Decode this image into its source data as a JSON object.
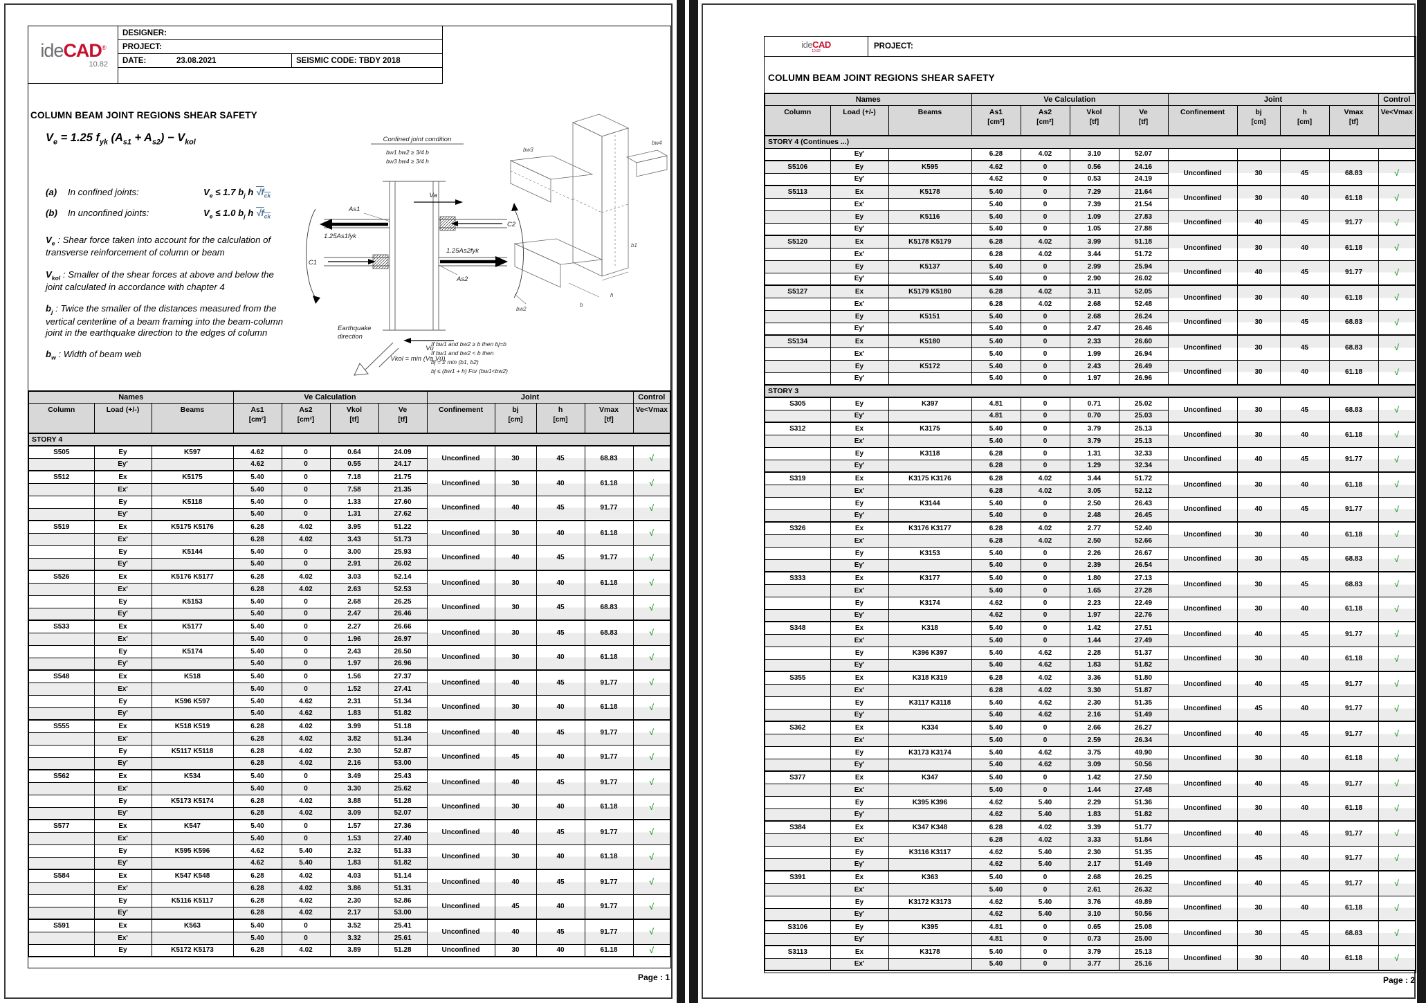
{
  "colors": {
    "accent_red": "#c8102e",
    "logo_gray": "#6d6e71",
    "check_green": "#2e9e2e",
    "header_gray": "#d8d8d8",
    "row_alt": "#ececec"
  },
  "page1": {
    "logo": {
      "ide": "ide",
      "cad": "CAD",
      "reg": "®",
      "version": "10.82"
    },
    "header": {
      "designer": "DESIGNER:",
      "project": "PROJECT:",
      "date": "DATE:",
      "date_value": "23.08.2021",
      "seismic": "SEISMIC CODE: TBDY 2018"
    },
    "title": "COLUMN BEAM JOINT REGIONS SHEAR SAFETY",
    "formula_main": [
      [
        "V",
        "e"
      ],
      [
        " = 1.25 f",
        "yk"
      ],
      [
        " (A",
        "s1"
      ],
      [
        " + A",
        "s2"
      ],
      [
        ") − V",
        "kol"
      ]
    ],
    "cond_a": {
      "label": "(a)",
      "text": "In confined joints:",
      "formula": [
        [
          "V",
          "e"
        ],
        [
          " ≤ 1.7 b",
          "j"
        ],
        [
          " h ",
          ""
        ],
        [
          "√f",
          "ck",
          1
        ]
      ]
    },
    "cond_b": {
      "label": "(b)",
      "text": "In unconfined joints:",
      "formula": [
        [
          "V",
          "e"
        ],
        [
          " ≤ 1.0 b",
          "j"
        ],
        [
          " h ",
          ""
        ],
        [
          "√f",
          "ck",
          1
        ]
      ]
    },
    "defs": [
      {
        "term": [
          [
            "V",
            "e"
          ]
        ],
        "text": " : Shear force taken into account for the calculation of transverse reinforcement of column or beam"
      },
      {
        "term": [
          [
            "V",
            "kol"
          ]
        ],
        "text": " : Smaller of the shear forces at above and below the joint calculated in accordance with chapter 4"
      },
      {
        "term": [
          [
            "b",
            "j"
          ]
        ],
        "text": " : Twice the smaller of the distances measured from the vertical centerline of a beam framing into the beam-column joint in the earthquake direction to the edges of column"
      },
      {
        "term": [
          [
            "b",
            "w"
          ]
        ],
        "text": " : Width of beam web"
      }
    ],
    "page_label": "Page : 1"
  },
  "page2": {
    "logo": {
      "ide": "ide",
      "cad": "CAD",
      "version": "10.82"
    },
    "header": {
      "project": "PROJECT:"
    },
    "title": "COLUMN BEAM JOINT REGIONS SHEAR SAFETY",
    "page_label": "Page : 2"
  },
  "diagram": {
    "cond_title": "Confined joint condition",
    "cond1": "bw1   bw2 ≥ 3/4 b",
    "cond2": "bw3   bw4 ≥ 3/4 h",
    "va": "Va",
    "vu": "Vü",
    "as1": "As1",
    "as2": "As2",
    "c1": "C1",
    "c2": "C2",
    "f1": "1.25As1fyk",
    "f2": "1.25As2fyk",
    "vkol": "Vkol = min (Va,Vü)",
    "eq1": "Earthquake",
    "eq2": "direction",
    "r1": "If bw1 and bw2 ≥ b then bj=b",
    "r2": "If bw1 and bw2 < b then",
    "r3": "bj = 2 min (b1, b2)",
    "r4": "bj ≤ (bw1 + h)  For (bw1<bw2)",
    "bw2": "bw2",
    "bw3": "bw3",
    "bw4": "bw4",
    "b1": "b1",
    "b": "b",
    "h": "h"
  },
  "table_header": {
    "groups": [
      {
        "label": "Names",
        "span": 3
      },
      {
        "label": "Ve Calculation",
        "span": 4
      },
      {
        "label": "Joint",
        "span": 4
      },
      {
        "label": "Control",
        "span": 1
      }
    ],
    "columns": [
      {
        "label": "Column",
        "unit": ""
      },
      {
        "label": "Load (+/-)",
        "unit": ""
      },
      {
        "label": "Beams",
        "unit": ""
      },
      {
        "label": "As1",
        "unit": "[cm²]"
      },
      {
        "label": "As2",
        "unit": "[cm²]"
      },
      {
        "label": "Vkol",
        "unit": "[tf]"
      },
      {
        "label": "Ve",
        "unit": "[tf]"
      },
      {
        "label": "Confinement",
        "unit": ""
      },
      {
        "label": "bj",
        "unit": "[cm]"
      },
      {
        "label": "h",
        "unit": "[cm]"
      },
      {
        "label": "Vmax",
        "unit": "[tf]"
      },
      {
        "label": "Ve<Vmax",
        "unit": ""
      }
    ],
    "check_glyph": "√"
  },
  "rows1": [
    {
      "band": "STORY 4"
    },
    [
      "S505",
      "Ey",
      "K597",
      "4.62",
      "0",
      "0.64",
      "24.09",
      "Unconfined",
      "30",
      "45",
      "68.83",
      1
    ],
    [
      "",
      "Ey'",
      "",
      "4.62",
      "0",
      "0.55",
      "24.17"
    ],
    [
      "S512",
      "Ex",
      "K5175",
      "5.40",
      "0",
      "7.18",
      "21.75",
      "Unconfined",
      "30",
      "40",
      "61.18",
      1
    ],
    [
      "",
      "Ex'",
      "",
      "5.40",
      "0",
      "7.58",
      "21.35"
    ],
    [
      "",
      "Ey",
      "K5118",
      "5.40",
      "0",
      "1.33",
      "27.60",
      "Unconfined",
      "40",
      "45",
      "91.77",
      1
    ],
    [
      "",
      "Ey'",
      "",
      "5.40",
      "0",
      "1.31",
      "27.62"
    ],
    [
      "S519",
      "Ex",
      "K5175 K5176",
      "6.28",
      "4.02",
      "3.95",
      "51.22",
      "Unconfined",
      "30",
      "40",
      "61.18",
      1
    ],
    [
      "",
      "Ex'",
      "",
      "6.28",
      "4.02",
      "3.43",
      "51.73"
    ],
    [
      "",
      "Ey",
      "K5144",
      "5.40",
      "0",
      "3.00",
      "25.93",
      "Unconfined",
      "40",
      "45",
      "91.77",
      1
    ],
    [
      "",
      "Ey'",
      "",
      "5.40",
      "0",
      "2.91",
      "26.02"
    ],
    [
      "S526",
      "Ex",
      "K5176 K5177",
      "6.28",
      "4.02",
      "3.03",
      "52.14",
      "Unconfined",
      "30",
      "40",
      "61.18",
      1
    ],
    [
      "",
      "Ex'",
      "",
      "6.28",
      "4.02",
      "2.63",
      "52.53"
    ],
    [
      "",
      "Ey",
      "K5153",
      "5.40",
      "0",
      "2.68",
      "26.25",
      "Unconfined",
      "30",
      "45",
      "68.83",
      1
    ],
    [
      "",
      "Ey'",
      "",
      "5.40",
      "0",
      "2.47",
      "26.46"
    ],
    [
      "S533",
      "Ex",
      "K5177",
      "5.40",
      "0",
      "2.27",
      "26.66",
      "Unconfined",
      "30",
      "45",
      "68.83",
      1
    ],
    [
      "",
      "Ex'",
      "",
      "5.40",
      "0",
      "1.96",
      "26.97"
    ],
    [
      "",
      "Ey",
      "K5174",
      "5.40",
      "0",
      "2.43",
      "26.50",
      "Unconfined",
      "30",
      "40",
      "61.18",
      1
    ],
    [
      "",
      "Ey'",
      "",
      "5.40",
      "0",
      "1.97",
      "26.96"
    ],
    [
      "S548",
      "Ex",
      "K518",
      "5.40",
      "0",
      "1.56",
      "27.37",
      "Unconfined",
      "40",
      "45",
      "91.77",
      1
    ],
    [
      "",
      "Ex'",
      "",
      "5.40",
      "0",
      "1.52",
      "27.41"
    ],
    [
      "",
      "Ey",
      "K596 K597",
      "5.40",
      "4.62",
      "2.31",
      "51.34",
      "Unconfined",
      "30",
      "40",
      "61.18",
      1
    ],
    [
      "",
      "Ey'",
      "",
      "5.40",
      "4.62",
      "1.83",
      "51.82"
    ],
    [
      "S555",
      "Ex",
      "K518 K519",
      "6.28",
      "4.02",
      "3.99",
      "51.18",
      "Unconfined",
      "40",
      "45",
      "91.77",
      1
    ],
    [
      "",
      "Ex'",
      "",
      "6.28",
      "4.02",
      "3.82",
      "51.34"
    ],
    [
      "",
      "Ey",
      "K5117 K5118",
      "6.28",
      "4.02",
      "2.30",
      "52.87",
      "Unconfined",
      "45",
      "40",
      "91.77",
      1
    ],
    [
      "",
      "Ey'",
      "",
      "6.28",
      "4.02",
      "2.16",
      "53.00"
    ],
    [
      "S562",
      "Ex",
      "K534",
      "5.40",
      "0",
      "3.49",
      "25.43",
      "Unconfined",
      "40",
      "45",
      "91.77",
      1
    ],
    [
      "",
      "Ex'",
      "",
      "5.40",
      "0",
      "3.30",
      "25.62"
    ],
    [
      "",
      "Ey",
      "K5173 K5174",
      "6.28",
      "4.02",
      "3.88",
      "51.28",
      "Unconfined",
      "30",
      "40",
      "61.18",
      1
    ],
    [
      "",
      "Ey'",
      "",
      "6.28",
      "4.02",
      "3.09",
      "52.07"
    ],
    [
      "S577",
      "Ex",
      "K547",
      "5.40",
      "0",
      "1.57",
      "27.36",
      "Unconfined",
      "40",
      "45",
      "91.77",
      1
    ],
    [
      "",
      "Ex'",
      "",
      "5.40",
      "0",
      "1.53",
      "27.40"
    ],
    [
      "",
      "Ey",
      "K595 K596",
      "4.62",
      "5.40",
      "2.32",
      "51.33",
      "Unconfined",
      "30",
      "40",
      "61.18",
      1
    ],
    [
      "",
      "Ey'",
      "",
      "4.62",
      "5.40",
      "1.83",
      "51.82"
    ],
    [
      "S584",
      "Ex",
      "K547 K548",
      "6.28",
      "4.02",
      "4.03",
      "51.14",
      "Unconfined",
      "40",
      "45",
      "91.77",
      1
    ],
    [
      "",
      "Ex'",
      "",
      "6.28",
      "4.02",
      "3.86",
      "51.31"
    ],
    [
      "",
      "Ey",
      "K5116 K5117",
      "6.28",
      "4.02",
      "2.30",
      "52.86",
      "Unconfined",
      "45",
      "40",
      "91.77",
      1
    ],
    [
      "",
      "Ey'",
      "",
      "6.28",
      "4.02",
      "2.17",
      "53.00"
    ],
    [
      "S591",
      "Ex",
      "K563",
      "5.40",
      "0",
      "3.52",
      "25.41",
      "Unconfined",
      "40",
      "45",
      "91.77",
      1
    ],
    [
      "",
      "Ex'",
      "",
      "5.40",
      "0",
      "3.32",
      "25.61"
    ],
    [
      "",
      "Ey",
      "K5172 K5173",
      "6.28",
      "4.02",
      "3.89",
      "51.28",
      "Unconfined",
      "30",
      "40",
      "61.18",
      1
    ]
  ],
  "rows2": [
    {
      "band": "STORY 4   (Continues ...)"
    },
    [
      "",
      "Ey'",
      "",
      "6.28",
      "4.02",
      "3.10",
      "52.07"
    ],
    [
      "S5106",
      "Ey",
      "K595",
      "4.62",
      "0",
      "0.56",
      "24.16",
      "Unconfined",
      "30",
      "45",
      "68.83",
      1
    ],
    [
      "",
      "Ey'",
      "",
      "4.62",
      "0",
      "0.53",
      "24.19"
    ],
    [
      "S5113",
      "Ex",
      "K5178",
      "5.40",
      "0",
      "7.29",
      "21.64",
      "Unconfined",
      "30",
      "40",
      "61.18",
      1
    ],
    [
      "",
      "Ex'",
      "",
      "5.40",
      "0",
      "7.39",
      "21.54"
    ],
    [
      "",
      "Ey",
      "K5116",
      "5.40",
      "0",
      "1.09",
      "27.83",
      "Unconfined",
      "40",
      "45",
      "91.77",
      1
    ],
    [
      "",
      "Ey'",
      "",
      "5.40",
      "0",
      "1.05",
      "27.88"
    ],
    [
      "S5120",
      "Ex",
      "K5178 K5179",
      "6.28",
      "4.02",
      "3.99",
      "51.18",
      "Unconfined",
      "30",
      "40",
      "61.18",
      1
    ],
    [
      "",
      "Ex'",
      "",
      "6.28",
      "4.02",
      "3.44",
      "51.72"
    ],
    [
      "",
      "Ey",
      "K5137",
      "5.40",
      "0",
      "2.99",
      "25.94",
      "Unconfined",
      "40",
      "45",
      "91.77",
      1
    ],
    [
      "",
      "Ey'",
      "",
      "5.40",
      "0",
      "2.90",
      "26.02"
    ],
    [
      "S5127",
      "Ex",
      "K5179 K5180",
      "6.28",
      "4.02",
      "3.11",
      "52.05",
      "Unconfined",
      "30",
      "40",
      "61.18",
      1
    ],
    [
      "",
      "Ex'",
      "",
      "6.28",
      "4.02",
      "2.68",
      "52.48"
    ],
    [
      "",
      "Ey",
      "K5151",
      "5.40",
      "0",
      "2.68",
      "26.24",
      "Unconfined",
      "30",
      "45",
      "68.83",
      1
    ],
    [
      "",
      "Ey'",
      "",
      "5.40",
      "0",
      "2.47",
      "26.46"
    ],
    [
      "S5134",
      "Ex",
      "K5180",
      "5.40",
      "0",
      "2.33",
      "26.60",
      "Unconfined",
      "30",
      "45",
      "68.83",
      1
    ],
    [
      "",
      "Ex'",
      "",
      "5.40",
      "0",
      "1.99",
      "26.94"
    ],
    [
      "",
      "Ey",
      "K5172",
      "5.40",
      "0",
      "2.43",
      "26.49",
      "Unconfined",
      "30",
      "40",
      "61.18",
      1
    ],
    [
      "",
      "Ey'",
      "",
      "5.40",
      "0",
      "1.97",
      "26.96"
    ],
    {
      "band": "STORY 3"
    },
    [
      "S305",
      "Ey",
      "K397",
      "4.81",
      "0",
      "0.71",
      "25.02",
      "Unconfined",
      "30",
      "45",
      "68.83",
      1
    ],
    [
      "",
      "Ey'",
      "",
      "4.81",
      "0",
      "0.70",
      "25.03"
    ],
    [
      "S312",
      "Ex",
      "K3175",
      "5.40",
      "0",
      "3.79",
      "25.13",
      "Unconfined",
      "30",
      "40",
      "61.18",
      1
    ],
    [
      "",
      "Ex'",
      "",
      "5.40",
      "0",
      "3.79",
      "25.13"
    ],
    [
      "",
      "Ey",
      "K3118",
      "6.28",
      "0",
      "1.31",
      "32.33",
      "Unconfined",
      "40",
      "45",
      "91.77",
      1
    ],
    [
      "",
      "Ey'",
      "",
      "6.28",
      "0",
      "1.29",
      "32.34"
    ],
    [
      "S319",
      "Ex",
      "K3175 K3176",
      "6.28",
      "4.02",
      "3.44",
      "51.72",
      "Unconfined",
      "30",
      "40",
      "61.18",
      1
    ],
    [
      "",
      "Ex'",
      "",
      "6.28",
      "4.02",
      "3.05",
      "52.12"
    ],
    [
      "",
      "Ey",
      "K3144",
      "5.40",
      "0",
      "2.50",
      "26.43",
      "Unconfined",
      "40",
      "45",
      "91.77",
      1
    ],
    [
      "",
      "Ey'",
      "",
      "5.40",
      "0",
      "2.48",
      "26.45"
    ],
    [
      "S326",
      "Ex",
      "K3176 K3177",
      "6.28",
      "4.02",
      "2.77",
      "52.40",
      "Unconfined",
      "30",
      "40",
      "61.18",
      1
    ],
    [
      "",
      "Ex'",
      "",
      "6.28",
      "4.02",
      "2.50",
      "52.66"
    ],
    [
      "",
      "Ey",
      "K3153",
      "5.40",
      "0",
      "2.26",
      "26.67",
      "Unconfined",
      "30",
      "45",
      "68.83",
      1
    ],
    [
      "",
      "Ey'",
      "",
      "5.40",
      "0",
      "2.39",
      "26.54"
    ],
    [
      "S333",
      "Ex",
      "K3177",
      "5.40",
      "0",
      "1.80",
      "27.13",
      "Unconfined",
      "30",
      "45",
      "68.83",
      1
    ],
    [
      "",
      "Ex'",
      "",
      "5.40",
      "0",
      "1.65",
      "27.28"
    ],
    [
      "",
      "Ey",
      "K3174",
      "4.62",
      "0",
      "2.23",
      "22.49",
      "Unconfined",
      "30",
      "40",
      "61.18",
      1
    ],
    [
      "",
      "Ey'",
      "",
      "4.62",
      "0",
      "1.97",
      "22.76"
    ],
    [
      "S348",
      "Ex",
      "K318",
      "5.40",
      "0",
      "1.42",
      "27.51",
      "Unconfined",
      "40",
      "45",
      "91.77",
      1
    ],
    [
      "",
      "Ex'",
      "",
      "5.40",
      "0",
      "1.44",
      "27.49"
    ],
    [
      "",
      "Ey",
      "K396 K397",
      "5.40",
      "4.62",
      "2.28",
      "51.37",
      "Unconfined",
      "30",
      "40",
      "61.18",
      1
    ],
    [
      "",
      "Ey'",
      "",
      "5.40",
      "4.62",
      "1.83",
      "51.82"
    ],
    [
      "S355",
      "Ex",
      "K318 K319",
      "6.28",
      "4.02",
      "3.36",
      "51.80",
      "Unconfined",
      "40",
      "45",
      "91.77",
      1
    ],
    [
      "",
      "Ex'",
      "",
      "6.28",
      "4.02",
      "3.30",
      "51.87"
    ],
    [
      "",
      "Ey",
      "K3117 K3118",
      "5.40",
      "4.62",
      "2.30",
      "51.35",
      "Unconfined",
      "45",
      "40",
      "91.77",
      1
    ],
    [
      "",
      "Ey'",
      "",
      "5.40",
      "4.62",
      "2.16",
      "51.49"
    ],
    [
      "S362",
      "Ex",
      "K334",
      "5.40",
      "0",
      "2.66",
      "26.27",
      "Unconfined",
      "40",
      "45",
      "91.77",
      1
    ],
    [
      "",
      "Ex'",
      "",
      "5.40",
      "0",
      "2.59",
      "26.34"
    ],
    [
      "",
      "Ey",
      "K3173 K3174",
      "5.40",
      "4.62",
      "3.75",
      "49.90",
      "Unconfined",
      "30",
      "40",
      "61.18",
      1
    ],
    [
      "",
      "Ey'",
      "",
      "5.40",
      "4.62",
      "3.09",
      "50.56"
    ],
    [
      "S377",
      "Ex",
      "K347",
      "5.40",
      "0",
      "1.42",
      "27.50",
      "Unconfined",
      "40",
      "45",
      "91.77",
      1
    ],
    [
      "",
      "Ex'",
      "",
      "5.40",
      "0",
      "1.44",
      "27.48"
    ],
    [
      "",
      "Ey",
      "K395 K396",
      "4.62",
      "5.40",
      "2.29",
      "51.36",
      "Unconfined",
      "30",
      "40",
      "61.18",
      1
    ],
    [
      "",
      "Ey'",
      "",
      "4.62",
      "5.40",
      "1.83",
      "51.82"
    ],
    [
      "S384",
      "Ex",
      "K347 K348",
      "6.28",
      "4.02",
      "3.39",
      "51.77",
      "Unconfined",
      "40",
      "45",
      "91.77",
      1
    ],
    [
      "",
      "Ex'",
      "",
      "6.28",
      "4.02",
      "3.33",
      "51.84"
    ],
    [
      "",
      "Ey",
      "K3116 K3117",
      "4.62",
      "5.40",
      "2.30",
      "51.35",
      "Unconfined",
      "45",
      "40",
      "91.77",
      1
    ],
    [
      "",
      "Ey'",
      "",
      "4.62",
      "5.40",
      "2.17",
      "51.49"
    ],
    [
      "S391",
      "Ex",
      "K363",
      "5.40",
      "0",
      "2.68",
      "26.25",
      "Unconfined",
      "40",
      "45",
      "91.77",
      1
    ],
    [
      "",
      "Ex'",
      "",
      "5.40",
      "0",
      "2.61",
      "26.32"
    ],
    [
      "",
      "Ey",
      "K3172 K3173",
      "4.62",
      "5.40",
      "3.76",
      "49.89",
      "Unconfined",
      "30",
      "40",
      "61.18",
      1
    ],
    [
      "",
      "Ey'",
      "",
      "4.62",
      "5.40",
      "3.10",
      "50.56"
    ],
    [
      "S3106",
      "Ey",
      "K395",
      "4.81",
      "0",
      "0.65",
      "25.08",
      "Unconfined",
      "30",
      "45",
      "68.83",
      1
    ],
    [
      "",
      "Ey'",
      "",
      "4.81",
      "0",
      "0.73",
      "25.00"
    ],
    [
      "S3113",
      "Ex",
      "K3178",
      "5.40",
      "0",
      "3.79",
      "25.13",
      "Unconfined",
      "30",
      "40",
      "61.18",
      1
    ],
    [
      "",
      "Ex'",
      "",
      "5.40",
      "0",
      "3.77",
      "25.16"
    ]
  ]
}
